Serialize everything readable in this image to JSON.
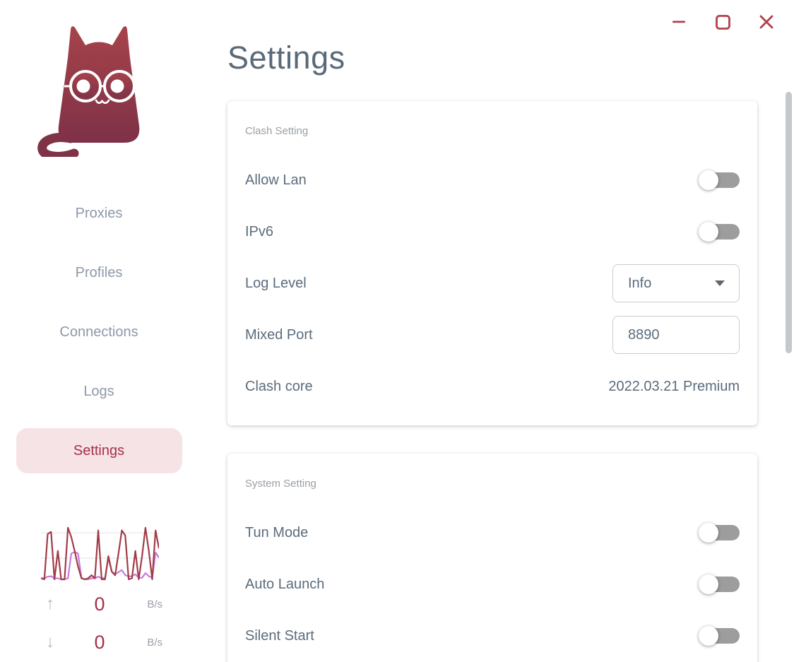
{
  "window": {
    "controls": [
      {
        "icon": "minimize-icon"
      },
      {
        "icon": "maximize-icon"
      },
      {
        "icon": "close-icon"
      }
    ]
  },
  "sidebar": {
    "logo": "clash-cat-logo",
    "items": [
      {
        "label": "Proxies",
        "active": false
      },
      {
        "label": "Profiles",
        "active": false
      },
      {
        "label": "Connections",
        "active": false
      },
      {
        "label": "Logs",
        "active": false
      },
      {
        "label": "Settings",
        "active": true
      }
    ],
    "traffic": {
      "up": {
        "icon": "arrow-up-icon",
        "value": "0",
        "unit": "B/s"
      },
      "down": {
        "icon": "arrow-down-icon",
        "value": "0",
        "unit": "B/s"
      }
    }
  },
  "main": {
    "title": "Settings",
    "cards": [
      {
        "section": "Clash Setting",
        "rows": [
          {
            "label": "Allow Lan",
            "control": "toggle",
            "state": "off"
          },
          {
            "label": "IPv6",
            "control": "toggle",
            "state": "off"
          },
          {
            "label": "Log Level",
            "control": "select",
            "value": "Info"
          },
          {
            "label": "Mixed Port",
            "control": "input",
            "value": "8890"
          },
          {
            "label": "Clash core",
            "control": "text",
            "value": "2022.03.21 Premium"
          }
        ]
      },
      {
        "section": "System Setting",
        "rows": [
          {
            "label": "Tun Mode",
            "control": "toggle",
            "state": "off"
          },
          {
            "label": "Auto Launch",
            "control": "toggle",
            "state": "off"
          },
          {
            "label": "Silent Start",
            "control": "toggle",
            "state": "off"
          }
        ]
      }
    ]
  },
  "colors": {
    "accent_red": "#a5314a",
    "window_button_red": "#b2404c",
    "active_pill_bg": "#f6e3e6",
    "nav_text": "#8e98a8",
    "label_slate": "#5b6c7c",
    "section_gray": "#9aa0a6",
    "toggle_track": "#9d9d9d",
    "field_border": "#c8ccd1",
    "scrollbar": "#c4c8cc",
    "cat_gradient_top": "#a6434a",
    "cat_gradient_bottom": "#7e3148"
  },
  "chart_data": {
    "type": "line",
    "title": "traffic-sparkline",
    "xlabel": "",
    "ylabel": "",
    "ylim": [
      0,
      100
    ],
    "grid": true,
    "gridline_values": [
      90,
      41
    ],
    "legend_position": "none",
    "series": [
      {
        "name": "upload",
        "color": "#a13c46",
        "values": [
          2,
          0,
          88,
          92,
          0,
          55,
          0,
          0,
          100,
          82,
          55,
          25,
          2,
          0,
          2,
          8,
          2,
          95,
          0,
          0,
          45,
          15,
          8,
          50,
          95,
          85,
          0,
          2,
          55,
          0,
          45,
          100,
          55,
          0,
          95,
          60
        ]
      },
      {
        "name": "download",
        "color": "#c879dd",
        "values": [
          2,
          2,
          5,
          6,
          2,
          2,
          0,
          0,
          2,
          50,
          53,
          50,
          3,
          0,
          0,
          2,
          2,
          5,
          2,
          3,
          42,
          15,
          10,
          14,
          18,
          8,
          6,
          6,
          10,
          3,
          3,
          12,
          6,
          3,
          52,
          42
        ]
      }
    ]
  }
}
